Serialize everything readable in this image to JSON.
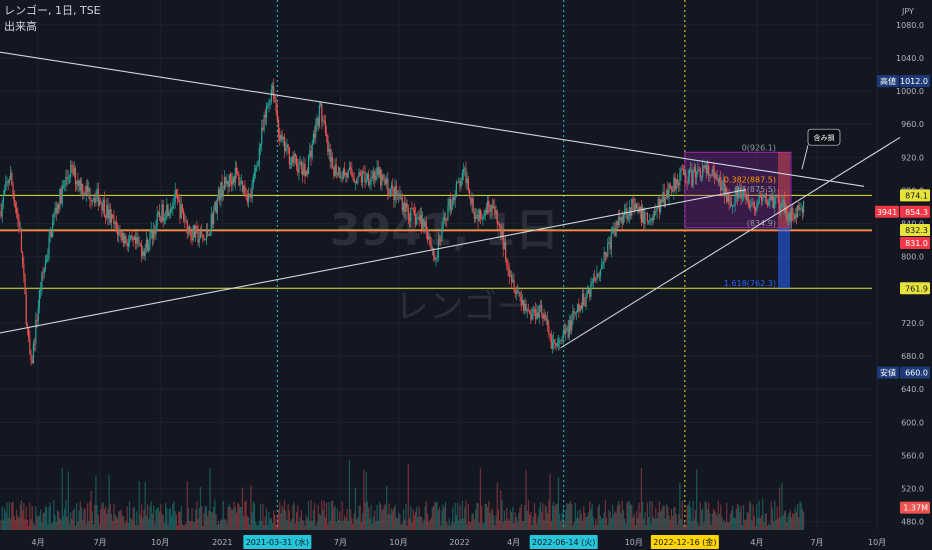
{
  "header": {
    "symbol_line": "レンゴー, 1日, TSE",
    "indicator_label": "出来高"
  },
  "watermark": {
    "main": "3941, 1日",
    "sub": "レンゴー"
  },
  "colors": {
    "background": "#131722",
    "up": "#26a69a",
    "down": "#ef5350",
    "trendline": "#d1d4dc",
    "level_yellow": "#e8e33a",
    "level_red": "#f23645",
    "vline_cyan": "#26c6da",
    "vline_yellow": "#ffd600",
    "fib_box": "#9c27b0",
    "bar_blue": "#2962ff",
    "label_navy": "#1e3a78",
    "axis_text": "#b2b5be"
  },
  "chart_data": {
    "type": "candlestick",
    "currency_label": "JPY",
    "ylim": [
      470,
      1110
    ],
    "y_ticks": [
      480,
      520,
      560,
      600,
      640,
      680,
      720,
      760,
      800,
      840,
      880,
      920,
      960,
      1000,
      1040,
      1080
    ],
    "x_ticks": [
      {
        "label": "4月",
        "t": 38
      },
      {
        "label": "7月",
        "t": 100
      },
      {
        "label": "10月",
        "t": 160
      },
      {
        "label": "2021",
        "t": 222
      },
      {
        "label": "7月",
        "t": 340
      },
      {
        "label": "10月",
        "t": 398
      },
      {
        "label": "2022",
        "t": 459
      },
      {
        "label": "4月",
        "t": 513
      },
      {
        "label": "10月",
        "t": 633
      },
      {
        "label": "4月",
        "t": 756
      },
      {
        "label": "7月",
        "t": 816
      },
      {
        "label": "10月",
        "t": 876
      }
    ],
    "date_markers": [
      {
        "label": "2021-03-31 (水)",
        "t": 277,
        "color": "cyan"
      },
      {
        "label": "2022-06-14 (火)",
        "t": 563,
        "color": "cyan"
      },
      {
        "label": "2022-12-16 (金)",
        "t": 684,
        "color": "yellow"
      }
    ],
    "price_path": [
      [
        0,
        855
      ],
      [
        10,
        900
      ],
      [
        20,
        830
      ],
      [
        28,
        700
      ],
      [
        31,
        665
      ],
      [
        40,
        760
      ],
      [
        55,
        855
      ],
      [
        70,
        905
      ],
      [
        85,
        880
      ],
      [
        100,
        870
      ],
      [
        115,
        835
      ],
      [
        130,
        815
      ],
      [
        145,
        810
      ],
      [
        160,
        850
      ],
      [
        175,
        870
      ],
      [
        190,
        830
      ],
      [
        205,
        820
      ],
      [
        220,
        880
      ],
      [
        235,
        900
      ],
      [
        250,
        870
      ],
      [
        262,
        950
      ],
      [
        272,
        1010
      ],
      [
        280,
        940
      ],
      [
        290,
        920
      ],
      [
        305,
        900
      ],
      [
        320,
        980
      ],
      [
        330,
        910
      ],
      [
        345,
        900
      ],
      [
        360,
        895
      ],
      [
        375,
        900
      ],
      [
        390,
        880
      ],
      [
        400,
        870
      ],
      [
        410,
        850
      ],
      [
        425,
        840
      ],
      [
        435,
        795
      ],
      [
        445,
        850
      ],
      [
        455,
        880
      ],
      [
        465,
        900
      ],
      [
        475,
        850
      ],
      [
        490,
        865
      ],
      [
        500,
        830
      ],
      [
        510,
        780
      ],
      [
        520,
        750
      ],
      [
        530,
        730
      ],
      [
        540,
        740
      ],
      [
        550,
        700
      ],
      [
        558,
        690
      ],
      [
        568,
        715
      ],
      [
        580,
        740
      ],
      [
        590,
        765
      ],
      [
        600,
        790
      ],
      [
        610,
        820
      ],
      [
        620,
        850
      ],
      [
        630,
        860
      ],
      [
        640,
        850
      ],
      [
        650,
        845
      ],
      [
        660,
        865
      ],
      [
        670,
        885
      ],
      [
        680,
        900
      ],
      [
        690,
        895
      ],
      [
        700,
        905
      ],
      [
        710,
        900
      ],
      [
        720,
        885
      ],
      [
        730,
        870
      ],
      [
        740,
        875
      ],
      [
        750,
        860
      ],
      [
        760,
        865
      ],
      [
        770,
        870
      ],
      [
        780,
        860
      ],
      [
        790,
        850
      ],
      [
        800,
        856
      ]
    ],
    "t_max": 803,
    "volume_series": {
      "name": "出来高",
      "last_label": "1.37M"
    },
    "price_labels": [
      {
        "kind": "high",
        "label": "高値",
        "value": "1012.0"
      },
      {
        "kind": "level",
        "value": "874.1",
        "style": "yellow"
      },
      {
        "kind": "ticker",
        "label": "3941",
        "value": "854.3",
        "style": "red"
      },
      {
        "kind": "level",
        "value": "832.3",
        "style": "yellow"
      },
      {
        "kind": "level",
        "value": "831.0",
        "style": "red"
      },
      {
        "kind": "level",
        "value": "761.9",
        "style": "yellow"
      },
      {
        "kind": "low",
        "label": "安値",
        "value": "660.0"
      }
    ],
    "horizontal_levels": [
      874.1,
      832.3,
      831.0,
      761.9
    ],
    "fib_retracement": {
      "levels": [
        "0(926.1)",
        "0.382(887.5)",
        "0.5(875.5)",
        "(834.9)",
        "1.618(762.3)"
      ]
    },
    "annotation": "含み損"
  }
}
